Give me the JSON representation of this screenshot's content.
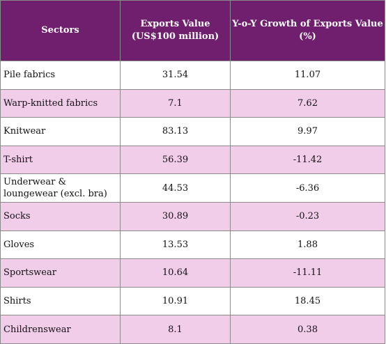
{
  "table": {
    "headers": {
      "sectors": "Sectors",
      "value_line1": "Exports Value",
      "value_line2": "(US$100 million)",
      "growth_line1": "Y-o-Y Growth of Exports Value",
      "growth_line2": "(%)"
    },
    "rows": [
      {
        "sector": "Pile fabrics",
        "value": "31.54",
        "growth": "11.07"
      },
      {
        "sector": "Warp-knitted fabrics",
        "value": "7.1",
        "growth": "7.62"
      },
      {
        "sector": "Knitwear",
        "value": "83.13",
        "growth": "9.97"
      },
      {
        "sector": "T-shirt",
        "value": "56.39",
        "growth": "-11.42"
      },
      {
        "sector": "Underwear & loungewear (excl. bra)",
        "value": "44.53",
        "growth": "-6.36"
      },
      {
        "sector": "Socks",
        "value": "30.89",
        "growth": "-0.23"
      },
      {
        "sector": "Gloves",
        "value": "13.53",
        "growth": "1.88"
      },
      {
        "sector": "Sportswear",
        "value": "10.64",
        "growth": "-11.11"
      },
      {
        "sector": "Shirts",
        "value": "10.91",
        "growth": "18.45"
      },
      {
        "sector": "Childrenswear",
        "value": "8.1",
        "growth": "0.38"
      }
    ]
  },
  "colors": {
    "header_bg": "#6f1f6e",
    "header_text": "#ffffff",
    "alt_row_bg": "#f1cdea"
  }
}
